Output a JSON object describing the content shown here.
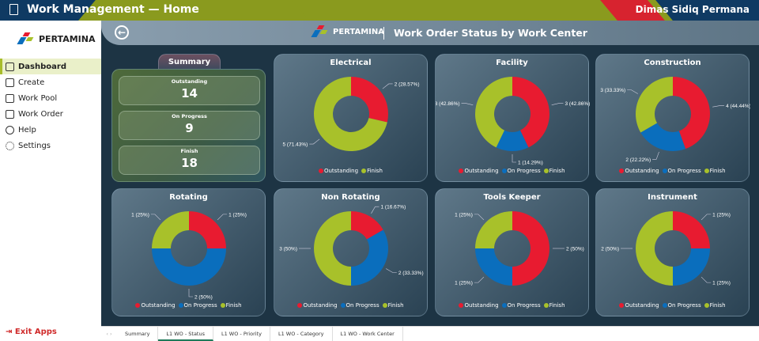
{
  "app": {
    "title": "Work Management — Home",
    "user": "Dimas Sidiq Permana"
  },
  "brand": "PERTAMINA",
  "sidebar": {
    "items": [
      {
        "label": "Dashboard"
      },
      {
        "label": "Create"
      },
      {
        "label": "Work Pool"
      },
      {
        "label": "Work Order"
      },
      {
        "label": "Help"
      },
      {
        "label": "Settings"
      }
    ],
    "exit": "Exit Apps"
  },
  "header": {
    "title": "Work Order Status by Work Center"
  },
  "summary": {
    "title": "Summary",
    "items": [
      {
        "label": "Outstanding",
        "value": "14"
      },
      {
        "label": "On Progress",
        "value": "9"
      },
      {
        "label": "Finish",
        "value": "18"
      }
    ]
  },
  "colors": {
    "Outstanding": "#e81b30",
    "On Progress": "#0a6ebd",
    "Finish": "#a8c12a"
  },
  "legend": {
    "outstanding": "Outstanding",
    "on_progress": "On Progress",
    "finish": "Finish"
  },
  "tabs": [
    "Summary",
    "L1 WO - Status",
    "L1 WO - Priority",
    "L1 WO - Category",
    "L1 WO - Work Center"
  ],
  "chart_data": [
    {
      "type": "pie",
      "title": "Electrical",
      "categories": [
        "Outstanding",
        "Finish"
      ],
      "values": [
        2,
        5
      ],
      "labels": [
        "2 (28.57%)",
        "5 (71.43%)"
      ]
    },
    {
      "type": "pie",
      "title": "Facility",
      "categories": [
        "Outstanding",
        "On Progress",
        "Finish"
      ],
      "values": [
        3,
        1,
        3
      ],
      "labels": [
        "3 (42.86%)",
        "1 (14.29%)",
        "3 (42.86%)"
      ]
    },
    {
      "type": "pie",
      "title": "Construction",
      "categories": [
        "Outstanding",
        "On Progress",
        "Finish"
      ],
      "values": [
        4,
        2,
        3
      ],
      "labels": [
        "4 (44.44%)",
        "2 (22.22%)",
        "3 (33.33%)"
      ]
    },
    {
      "type": "pie",
      "title": "Rotating",
      "categories": [
        "Outstanding",
        "On Progress",
        "Finish"
      ],
      "values": [
        1,
        2,
        1
      ],
      "labels": [
        "1 (25%)",
        "2 (50%)",
        "1 (25%)"
      ]
    },
    {
      "type": "pie",
      "title": "Non Rotating",
      "categories": [
        "Outstanding",
        "On Progress",
        "Finish"
      ],
      "values": [
        1,
        2,
        3
      ],
      "labels": [
        "1 (16.67%)",
        "2 (33.33%)",
        "3 (50%)"
      ]
    },
    {
      "type": "pie",
      "title": "Tools Keeper",
      "categories": [
        "Outstanding",
        "On Progress",
        "Finish"
      ],
      "values": [
        2,
        1,
        1
      ],
      "labels": [
        "2 (50%)",
        "1 (25%)",
        "1 (25%)"
      ]
    },
    {
      "type": "pie",
      "title": "Instrument",
      "categories": [
        "Outstanding",
        "On Progress",
        "Finish"
      ],
      "values": [
        1,
        1,
        2
      ],
      "labels": [
        "1 (25%)",
        "1 (25%)",
        "2 (50%)"
      ]
    }
  ]
}
